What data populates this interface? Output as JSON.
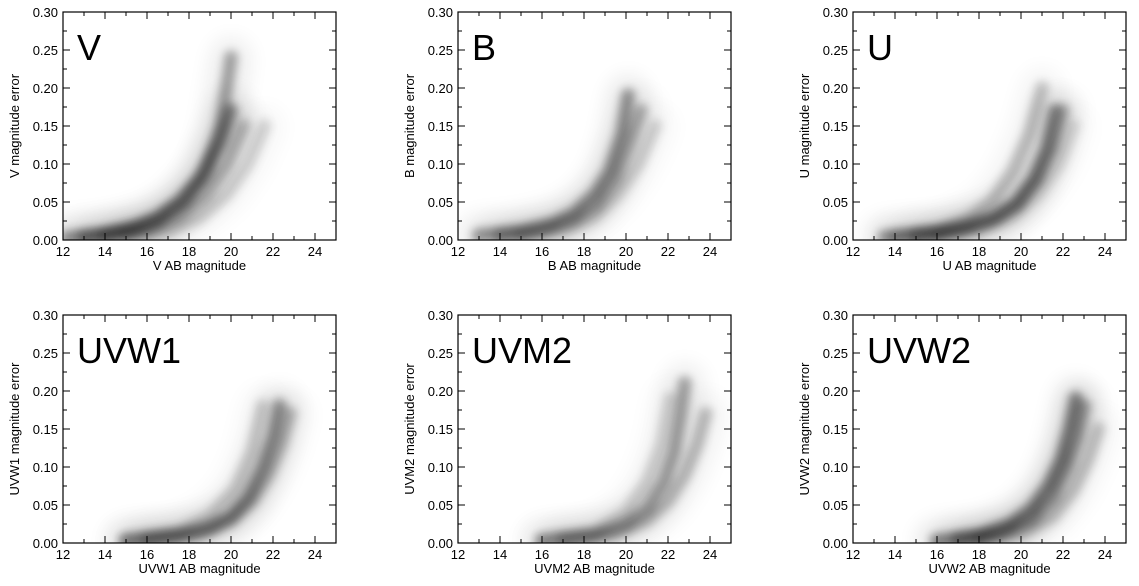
{
  "chart_data": [
    {
      "type": "heatmap",
      "band": "V",
      "xlabel": "V AB magnitude",
      "ylabel": "V magnitude error",
      "xlim": [
        12,
        25
      ],
      "ylim": [
        0.0,
        0.3
      ],
      "xticks": [
        "12",
        "14",
        "16",
        "18",
        "20",
        "22",
        "24"
      ],
      "yticks": [
        "0.00",
        "0.05",
        "0.10",
        "0.15",
        "0.20",
        "0.25",
        "0.30"
      ],
      "ridges": [
        {
          "strength": 0.9,
          "points": [
            [
              12.2,
              0.003
            ],
            [
              14,
              0.008
            ],
            [
              15.5,
              0.018
            ],
            [
              16.5,
              0.03
            ],
            [
              17.5,
              0.05
            ],
            [
              18.5,
              0.08
            ],
            [
              19.5,
              0.13
            ],
            [
              20.0,
              0.17
            ]
          ]
        },
        {
          "strength": 0.7,
          "points": [
            [
              13,
              0.003
            ],
            [
              15,
              0.012
            ],
            [
              16.5,
              0.025
            ],
            [
              17.8,
              0.05
            ],
            [
              18.8,
              0.09
            ],
            [
              19.5,
              0.15
            ],
            [
              19.9,
              0.22
            ],
            [
              20.0,
              0.24
            ]
          ]
        },
        {
          "strength": 0.5,
          "points": [
            [
              14,
              0.004
            ],
            [
              16,
              0.012
            ],
            [
              17.5,
              0.03
            ],
            [
              18.8,
              0.06
            ],
            [
              19.8,
              0.1
            ],
            [
              20.6,
              0.15
            ]
          ]
        },
        {
          "strength": 0.3,
          "points": [
            [
              15,
              0.004
            ],
            [
              17,
              0.012
            ],
            [
              18.5,
              0.03
            ],
            [
              19.8,
              0.06
            ],
            [
              20.8,
              0.1
            ],
            [
              21.6,
              0.15
            ]
          ]
        }
      ]
    },
    {
      "type": "heatmap",
      "band": "B",
      "xlabel": "B AB magnitude",
      "ylabel": "B magnitude error",
      "xlim": [
        12,
        25
      ],
      "ylim": [
        0.0,
        0.3
      ],
      "xticks": [
        "12",
        "14",
        "16",
        "18",
        "20",
        "22",
        "24"
      ],
      "yticks": [
        "0.00",
        "0.05",
        "0.10",
        "0.15",
        "0.20",
        "0.25",
        "0.30"
      ],
      "ridges": [
        {
          "strength": 0.85,
          "points": [
            [
              13,
              0.006
            ],
            [
              15,
              0.012
            ],
            [
              16.5,
              0.022
            ],
            [
              17.5,
              0.035
            ],
            [
              18.5,
              0.06
            ],
            [
              19.2,
              0.09
            ],
            [
              19.8,
              0.14
            ],
            [
              20.1,
              0.19
            ]
          ]
        },
        {
          "strength": 0.6,
          "points": [
            [
              14,
              0.004
            ],
            [
              16,
              0.012
            ],
            [
              17.5,
              0.025
            ],
            [
              18.6,
              0.045
            ],
            [
              19.5,
              0.08
            ],
            [
              20.2,
              0.13
            ],
            [
              20.7,
              0.17
            ]
          ]
        },
        {
          "strength": 0.3,
          "points": [
            [
              15,
              0.004
            ],
            [
              17,
              0.012
            ],
            [
              18.5,
              0.03
            ],
            [
              19.6,
              0.06
            ],
            [
              20.6,
              0.1
            ],
            [
              21.4,
              0.15
            ]
          ]
        }
      ]
    },
    {
      "type": "heatmap",
      "band": "U",
      "xlabel": "U AB magnitude",
      "ylabel": "U magnitude error",
      "xlim": [
        12,
        25
      ],
      "ylim": [
        0.0,
        0.3
      ],
      "xticks": [
        "12",
        "14",
        "16",
        "18",
        "20",
        "22",
        "24"
      ],
      "yticks": [
        "0.00",
        "0.05",
        "0.10",
        "0.15",
        "0.20",
        "0.25",
        "0.30"
      ],
      "ridges": [
        {
          "strength": 0.85,
          "points": [
            [
              13.5,
              0.004
            ],
            [
              16,
              0.01
            ],
            [
              17.5,
              0.018
            ],
            [
              18.8,
              0.03
            ],
            [
              19.8,
              0.05
            ],
            [
              20.6,
              0.08
            ],
            [
              21.2,
              0.12
            ],
            [
              21.6,
              0.17
            ]
          ]
        },
        {
          "strength": 0.6,
          "points": [
            [
              15,
              0.004
            ],
            [
              17,
              0.012
            ],
            [
              18.5,
              0.025
            ],
            [
              19.8,
              0.045
            ],
            [
              20.8,
              0.08
            ],
            [
              21.5,
              0.12
            ],
            [
              22.0,
              0.17
            ]
          ]
        },
        {
          "strength": 0.45,
          "points": [
            [
              14,
              0.004
            ],
            [
              16,
              0.012
            ],
            [
              17.5,
              0.028
            ],
            [
              18.6,
              0.05
            ],
            [
              19.6,
              0.09
            ],
            [
              20.4,
              0.14
            ],
            [
              21.0,
              0.2
            ]
          ]
        },
        {
          "strength": 0.25,
          "points": [
            [
              16,
              0.004
            ],
            [
              18,
              0.012
            ],
            [
              19.6,
              0.03
            ],
            [
              20.8,
              0.06
            ],
            [
              21.8,
              0.1
            ],
            [
              22.5,
              0.15
            ]
          ]
        }
      ]
    },
    {
      "type": "heatmap",
      "band": "UVW1",
      "xlabel": "UVW1 AB magnitude",
      "ylabel": "UVW1 magnitude error",
      "xlim": [
        12,
        25
      ],
      "ylim": [
        0.0,
        0.3
      ],
      "xticks": [
        "12",
        "14",
        "16",
        "18",
        "20",
        "22",
        "24"
      ],
      "yticks": [
        "0.00",
        "0.05",
        "0.10",
        "0.15",
        "0.20",
        "0.25",
        "0.30"
      ],
      "ridges": [
        {
          "strength": 0.85,
          "points": [
            [
              15,
              0.003
            ],
            [
              17.5,
              0.01
            ],
            [
              19,
              0.02
            ],
            [
              20,
              0.035
            ],
            [
              20.8,
              0.06
            ],
            [
              21.5,
              0.1
            ],
            [
              22.0,
              0.14
            ],
            [
              22.3,
              0.18
            ]
          ]
        },
        {
          "strength": 0.55,
          "points": [
            [
              16,
              0.003
            ],
            [
              18.5,
              0.012
            ],
            [
              20,
              0.03
            ],
            [
              21,
              0.055
            ],
            [
              21.8,
              0.09
            ],
            [
              22.4,
              0.13
            ],
            [
              22.8,
              0.17
            ]
          ]
        },
        {
          "strength": 0.35,
          "points": [
            [
              15,
              0.004
            ],
            [
              17.5,
              0.015
            ],
            [
              19,
              0.035
            ],
            [
              20.2,
              0.07
            ],
            [
              21,
              0.12
            ],
            [
              21.5,
              0.18
            ]
          ]
        }
      ]
    },
    {
      "type": "heatmap",
      "band": "UVM2",
      "xlabel": "UVM2 AB magnitude",
      "ylabel": "UVM2 magnitude error",
      "xlim": [
        12,
        25
      ],
      "ylim": [
        0.0,
        0.3
      ],
      "xticks": [
        "12",
        "14",
        "16",
        "18",
        "20",
        "22",
        "24"
      ],
      "yticks": [
        "0.00",
        "0.05",
        "0.10",
        "0.15",
        "0.20",
        "0.25",
        "0.30"
      ],
      "ridges": [
        {
          "strength": 0.7,
          "points": [
            [
              16,
              0.003
            ],
            [
              18.5,
              0.01
            ],
            [
              20,
              0.025
            ],
            [
              21,
              0.045
            ],
            [
              21.8,
              0.08
            ],
            [
              22.3,
              0.12
            ],
            [
              22.6,
              0.17
            ],
            [
              22.8,
              0.21
            ]
          ]
        },
        {
          "strength": 0.5,
          "points": [
            [
              17,
              0.003
            ],
            [
              19.5,
              0.012
            ],
            [
              21,
              0.03
            ],
            [
              22,
              0.055
            ],
            [
              22.8,
              0.09
            ],
            [
              23.4,
              0.13
            ],
            [
              23.8,
              0.17
            ]
          ]
        },
        {
          "strength": 0.3,
          "points": [
            [
              16,
              0.004
            ],
            [
              18.5,
              0.015
            ],
            [
              20,
              0.04
            ],
            [
              21,
              0.08
            ],
            [
              21.7,
              0.13
            ],
            [
              22.1,
              0.19
            ]
          ]
        }
      ]
    },
    {
      "type": "heatmap",
      "band": "UVW2",
      "xlabel": "UVW2 AB magnitude",
      "ylabel": "UVW2 magnitude error",
      "xlim": [
        12,
        25
      ],
      "ylim": [
        0.0,
        0.3
      ],
      "xticks": [
        "12",
        "14",
        "16",
        "18",
        "20",
        "22",
        "24"
      ],
      "yticks": [
        "0.00",
        "0.05",
        "0.10",
        "0.15",
        "0.20",
        "0.25",
        "0.30"
      ],
      "ridges": [
        {
          "strength": 1.0,
          "points": [
            [
              16,
              0.003
            ],
            [
              18,
              0.01
            ],
            [
              19.5,
              0.025
            ],
            [
              20.5,
              0.045
            ],
            [
              21.3,
              0.075
            ],
            [
              21.9,
              0.11
            ],
            [
              22.3,
              0.15
            ],
            [
              22.6,
              0.19
            ]
          ]
        },
        {
          "strength": 0.75,
          "points": [
            [
              17,
              0.003
            ],
            [
              19,
              0.012
            ],
            [
              20.5,
              0.03
            ],
            [
              21.5,
              0.06
            ],
            [
              22.2,
              0.1
            ],
            [
              22.7,
              0.14
            ],
            [
              23.0,
              0.18
            ]
          ]
        },
        {
          "strength": 0.4,
          "points": [
            [
              18,
              0.003
            ],
            [
              20,
              0.012
            ],
            [
              21.5,
              0.035
            ],
            [
              22.5,
              0.07
            ],
            [
              23.2,
              0.11
            ],
            [
              23.7,
              0.15
            ]
          ]
        }
      ]
    }
  ]
}
